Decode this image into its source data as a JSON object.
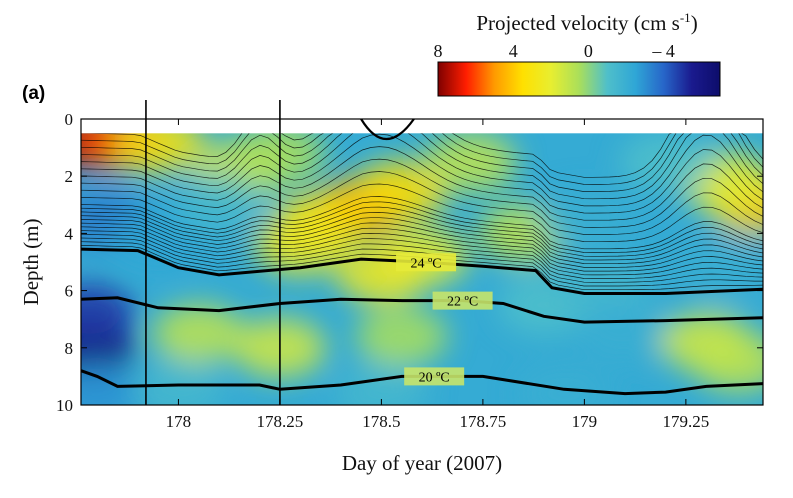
{
  "chart_data": {
    "type": "heatmap",
    "panel_label": "(a)",
    "xlabel": "Day of year (2007)",
    "ylabel": "Depth (m)",
    "xlim": [
      177.76,
      179.44
    ],
    "ylim": [
      10,
      0
    ],
    "y_inverted": true,
    "x_ticks": [
      178,
      178.25,
      178.5,
      178.75,
      179,
      179.25
    ],
    "x_tick_labels": [
      "178",
      "178.25",
      "178.5",
      "178.75",
      "179",
      "179.25"
    ],
    "y_ticks": [
      0,
      2,
      4,
      6,
      8,
      10
    ],
    "y_tick_labels": [
      "0",
      "2",
      "4",
      "6",
      "8",
      "10"
    ],
    "colorbar": {
      "label_main": "Projected velocity (cm s",
      "label_sup": "-1",
      "label_close": ")",
      "range": [
        8,
        -7
      ],
      "ticks": [
        8,
        4,
        0,
        -4
      ],
      "tick_labels": [
        "8",
        "4",
        "0",
        "– 4"
      ],
      "colors": [
        "#7f0000",
        "#ff1e00",
        "#ff9a00",
        "#ffe000",
        "#e8ee30",
        "#aadf5a",
        "#4fbfca",
        "#2fa6d6",
        "#2766c9",
        "#1a1a8e",
        "#0d0d6b"
      ]
    },
    "vertical_markers_x": [
      177.92,
      178.25
    ],
    "data_top_depth": 0.5,
    "isotherms": [
      {
        "label": "24 ºC",
        "label_x": 178.61,
        "x": [
          177.76,
          177.9,
          178.0,
          178.1,
          178.3,
          178.45,
          178.6,
          178.75,
          178.88,
          178.92,
          179.0,
          179.2,
          179.44
        ],
        "y": [
          4.55,
          4.6,
          5.2,
          5.45,
          5.2,
          4.9,
          5.0,
          5.15,
          5.3,
          5.9,
          6.1,
          6.1,
          5.95
        ]
      },
      {
        "label": "22 ºC",
        "label_x": 178.7,
        "x": [
          177.76,
          177.85,
          177.95,
          178.1,
          178.25,
          178.4,
          178.55,
          178.7,
          178.8,
          178.9,
          179.0,
          179.2,
          179.44
        ],
        "y": [
          6.3,
          6.25,
          6.6,
          6.7,
          6.45,
          6.3,
          6.35,
          6.35,
          6.45,
          6.9,
          7.1,
          7.05,
          6.95
        ]
      },
      {
        "label": "20 ºC",
        "label_x": 178.63,
        "x": [
          177.76,
          177.8,
          177.85,
          178.0,
          178.2,
          178.25,
          178.4,
          178.55,
          178.75,
          178.95,
          179.1,
          179.2,
          179.3,
          179.44
        ],
        "y": [
          8.8,
          9.0,
          9.35,
          9.3,
          9.3,
          9.45,
          9.3,
          9.0,
          9.0,
          9.45,
          9.6,
          9.55,
          9.35,
          9.25
        ]
      }
    ],
    "velocity_features": [
      {
        "x": 177.76,
        "y": 0.7,
        "v": 8
      },
      {
        "x": 177.85,
        "y": 0.75,
        "v": 6
      },
      {
        "x": 177.95,
        "y": 0.85,
        "v": 3
      },
      {
        "x": 177.78,
        "y": 8.0,
        "v": -6.5
      },
      {
        "x": 177.78,
        "y": 6.8,
        "v": -5
      },
      {
        "x": 177.8,
        "y": 9.6,
        "v": -3
      },
      {
        "x": 177.82,
        "y": 3.5,
        "v": -3.5
      },
      {
        "x": 178.45,
        "y": 3.1,
        "v": 5
      },
      {
        "x": 178.35,
        "y": 3.6,
        "v": 3.5
      },
      {
        "x": 178.55,
        "y": 2.5,
        "v": 3.5
      },
      {
        "x": 178.3,
        "y": 4.4,
        "v": 2.5
      },
      {
        "x": 178.6,
        "y": 4.8,
        "v": 2
      },
      {
        "x": 178.5,
        "y": 5.4,
        "v": 2.5
      },
      {
        "x": 178.72,
        "y": 1.5,
        "v": 1
      },
      {
        "x": 178.15,
        "y": 1.8,
        "v": 1.5
      },
      {
        "x": 178.25,
        "y": 1.2,
        "v": 0.5
      },
      {
        "x": 178.05,
        "y": 7.5,
        "v": 1
      },
      {
        "x": 178.25,
        "y": 8.0,
        "v": 1.5
      },
      {
        "x": 178.55,
        "y": 7.6,
        "v": 0.5
      },
      {
        "x": 178.85,
        "y": 4.0,
        "v": 1
      },
      {
        "x": 178.9,
        "y": 6.5,
        "v": -1
      },
      {
        "x": 179.0,
        "y": 3.5,
        "v": -2
      },
      {
        "x": 179.05,
        "y": 6.0,
        "v": -1.5
      },
      {
        "x": 179.1,
        "y": 7.5,
        "v": -2
      },
      {
        "x": 179.3,
        "y": 7.8,
        "v": 1.5
      },
      {
        "x": 179.38,
        "y": 8.5,
        "v": 1
      },
      {
        "x": 179.42,
        "y": 3.0,
        "v": 4
      },
      {
        "x": 179.35,
        "y": 2.2,
        "v": 2
      },
      {
        "x": 179.35,
        "y": 5.2,
        "v": -2
      },
      {
        "x": 179.2,
        "y": 1.5,
        "v": -1
      },
      {
        "x": 178.0,
        "y": 9.5,
        "v": -1.5
      },
      {
        "x": 178.5,
        "y": 9.6,
        "v": -1.5
      },
      {
        "x": 178.95,
        "y": 9.6,
        "v": -2
      },
      {
        "x": 177.95,
        "y": 4.2,
        "v": -2.5
      },
      {
        "x": 178.1,
        "y": 3.0,
        "v": -1.5
      }
    ]
  }
}
